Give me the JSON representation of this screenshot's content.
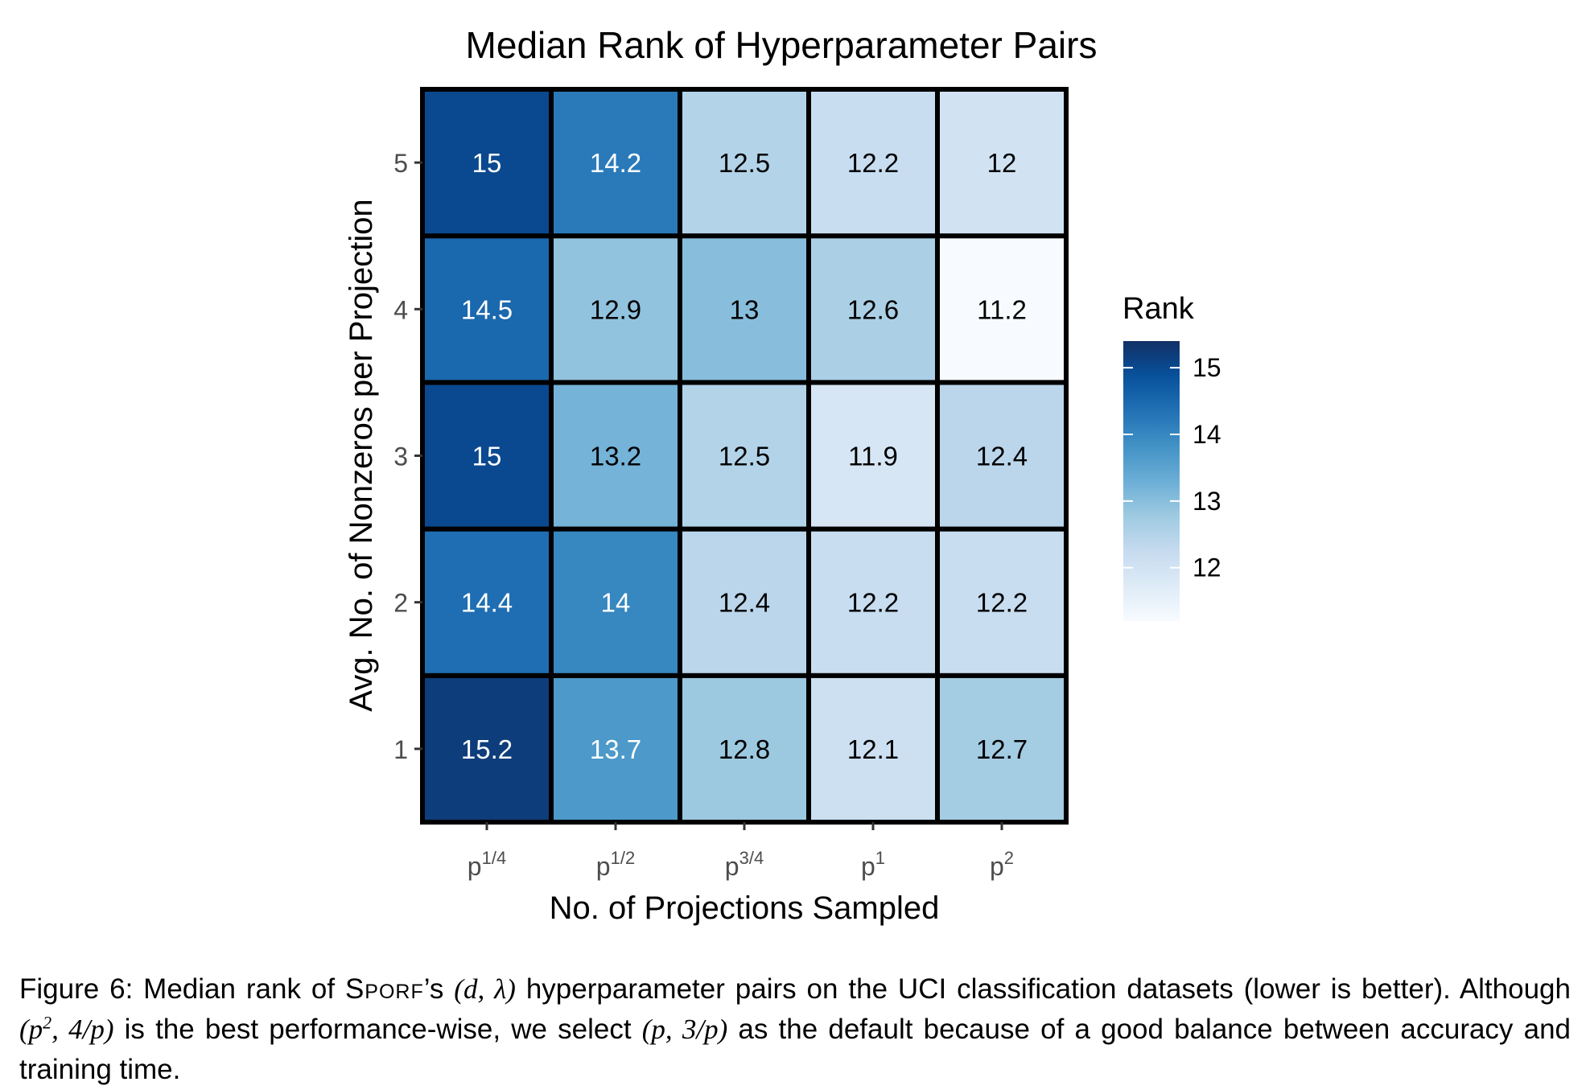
{
  "chart_data": {
    "type": "heatmap",
    "title": "Median Rank of Hyperparameter Pairs",
    "xlabel": "No. of Projections Sampled",
    "ylabel": "Avg. No. of Nonzeros per Projection",
    "x_categories": [
      {
        "base": "p",
        "exp": "1/4"
      },
      {
        "base": "p",
        "exp": "1/2"
      },
      {
        "base": "p",
        "exp": "3/4"
      },
      {
        "base": "p",
        "exp": "1"
      },
      {
        "base": "p",
        "exp": "2"
      }
    ],
    "y_categories": [
      "1",
      "2",
      "3",
      "4",
      "5"
    ],
    "values": [
      [
        15.2,
        13.7,
        12.8,
        12.1,
        12.7
      ],
      [
        14.4,
        14.0,
        12.4,
        12.2,
        12.2
      ],
      [
        15.0,
        13.2,
        12.5,
        11.9,
        12.4
      ],
      [
        14.5,
        12.9,
        13.0,
        12.6,
        11.2
      ],
      [
        15.0,
        14.2,
        12.5,
        12.2,
        12.0
      ]
    ],
    "value_labels": [
      [
        "15.2",
        "13.7",
        "12.8",
        "12.1",
        "12.7"
      ],
      [
        "14.4",
        "14",
        "12.4",
        "12.2",
        "12.2"
      ],
      [
        "15",
        "13.2",
        "12.5",
        "11.9",
        "12.4"
      ],
      [
        "14.5",
        "12.9",
        "13",
        "12.6",
        "11.2"
      ],
      [
        "15",
        "14.2",
        "12.5",
        "12.2",
        "12"
      ]
    ],
    "legend": {
      "title": "Rank",
      "ticks": [
        "15",
        "14",
        "13",
        "12"
      ],
      "tick_values": [
        15,
        14,
        13,
        12
      ],
      "range": [
        11.2,
        15.4
      ],
      "placement": "right"
    },
    "color_scale": {
      "low": "#f7fbff",
      "high": "#123066",
      "stops": [
        "#f7fbff",
        "#deebf7",
        "#c6dbef",
        "#9ecae1",
        "#6baed6",
        "#4292c6",
        "#2171b5",
        "#08519c",
        "#123066"
      ]
    },
    "label_dark_text_color": "#000000",
    "label_light_text_color": "#ffffff",
    "grid": false
  },
  "caption": {
    "prefix": "Figure 6: Median rank of ",
    "method": "Sporf",
    "after_method": "’s ",
    "pair_math": "(d, λ)",
    "part2": " hyperparameter pairs on the UCI classification datasets (lower is better). Although ",
    "best_math_open": "(p",
    "best_math_sup": "2",
    "best_math_close": ", 4/p)",
    "part3": " is the best performance-wise, we select ",
    "default_math": "(p, 3/p)",
    "part4": " as the default because of a good balance between accuracy and training time."
  }
}
